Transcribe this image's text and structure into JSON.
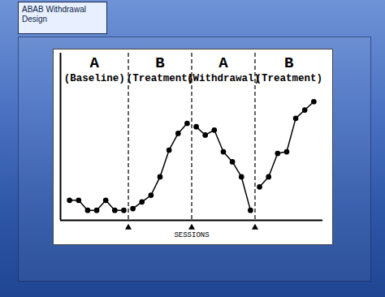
{
  "chart_data": {
    "type": "line",
    "title": "ABAB Withdrawal Design",
    "x_label": "SESSIONS",
    "xlim": [
      0,
      29
    ],
    "ylim": [
      0,
      100
    ],
    "tick_labels": false,
    "grid": false,
    "color": "#000000",
    "marker": "circle",
    "line_style": "solid",
    "phase_changes": [
      7.5,
      14.5,
      21.5
    ],
    "series": [
      {
        "name": "A",
        "description": "(Baseline)",
        "x": [
          1,
          2,
          3,
          4,
          5,
          6,
          7
        ],
        "values": [
          12,
          12,
          6,
          6,
          12,
          6,
          6
        ]
      },
      {
        "name": "B",
        "description": "(Treatment)",
        "x": [
          8,
          9,
          10,
          11,
          12,
          13,
          14
        ],
        "values": [
          7,
          11,
          15,
          26,
          42,
          52,
          58
        ]
      },
      {
        "name": "A",
        "description": "(Withdrawal)",
        "x": [
          15,
          16,
          17,
          18,
          19,
          20,
          21
        ],
        "values": [
          56,
          51,
          54,
          41,
          35,
          26,
          6
        ]
      },
      {
        "name": "B",
        "description": "(Treatment)",
        "x": [
          22,
          23,
          24,
          25,
          26,
          27,
          28
        ],
        "values": [
          20,
          26,
          40,
          41,
          61,
          66,
          71
        ]
      }
    ]
  }
}
